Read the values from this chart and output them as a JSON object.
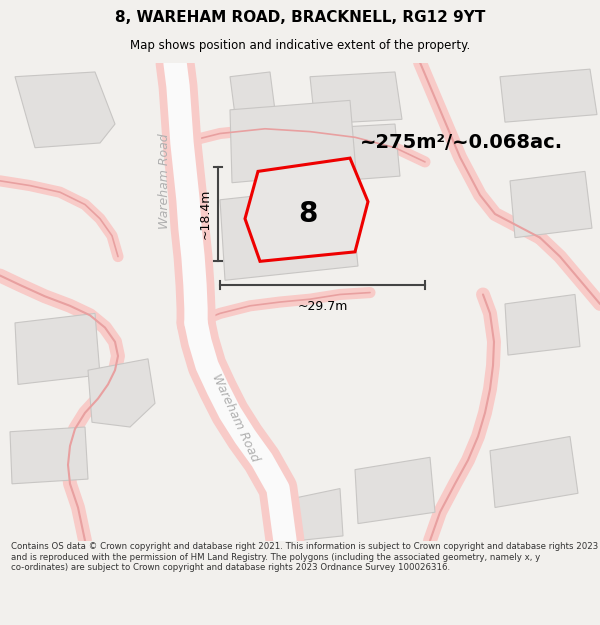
{
  "title": "8, WAREHAM ROAD, BRACKNELL, RG12 9YT",
  "subtitle": "Map shows position and indicative extent of the property.",
  "area_label": "~275m²/~0.068ac.",
  "number_label": "8",
  "dim_height": "~18.4m",
  "dim_width": "~29.7m",
  "road_label_left": "Wareham Road",
  "road_label_bottom": "Wareham Road",
  "footer": "Contains OS data © Crown copyright and database right 2021. This information is subject to Crown copyright and database rights 2023 and is reproduced with the permission of HM Land Registry. The polygons (including the associated geometry, namely x, y co-ordinates) are subject to Crown copyright and database rights 2023 Ordnance Survey 100026316.",
  "bg_color": "#f2f0ed",
  "map_bg": "#f2f0ed",
  "building_color": "#e2e0de",
  "building_stroke": "#c8c6c4",
  "road_fill": "#f8cbc8",
  "road_stroke": "#e8a0a0",
  "property_fill": "#e8e6e4",
  "property_stroke": "#ee0000",
  "dim_color": "#444444",
  "title_color": "#000000",
  "footer_color": "#333333",
  "road_label_color": "#bbbbbb",
  "white_road_fill": "#fafafa"
}
